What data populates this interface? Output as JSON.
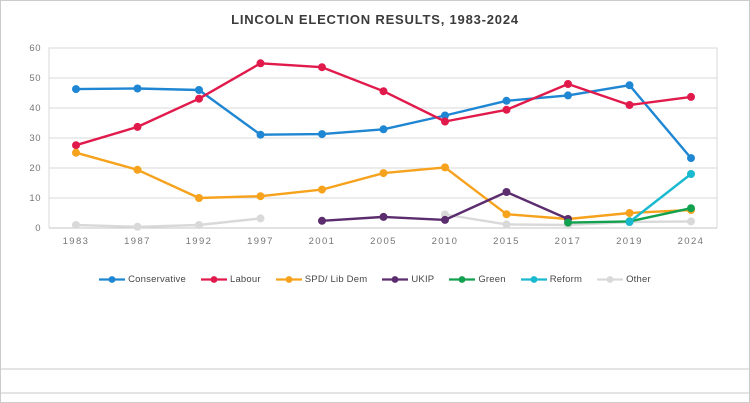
{
  "window": {
    "background": "#ffffff",
    "border_color": "#cccccc"
  },
  "chart_data": {
    "type": "line",
    "title": "LINCOLN ELECTION RESULTS, 1983-2024",
    "xlabel": "",
    "ylabel": "",
    "ylim": [
      0,
      60
    ],
    "ytick_interval": 10,
    "ytick_labels": [
      "0",
      "10",
      "20",
      "30",
      "40",
      "50",
      "60"
    ],
    "grid": true,
    "legend_position": "bottom",
    "categories": [
      "1983",
      "1987",
      "1992",
      "1997",
      "2001",
      "2005",
      "2010",
      "2015",
      "2017",
      "2019",
      "2024"
    ],
    "series": [
      {
        "name": "Conservative",
        "color": "#1e86d2",
        "values": [
          46.3,
          46.5,
          46.0,
          31.1,
          31.3,
          32.9,
          37.5,
          42.4,
          44.2,
          47.6,
          23.3
        ]
      },
      {
        "name": "Labour",
        "color": "#e11a4c",
        "values": [
          27.6,
          33.7,
          43.1,
          54.9,
          53.6,
          45.6,
          35.5,
          39.4,
          48.0,
          41.0,
          43.7
        ]
      },
      {
        "name": "SPD/ Lib Dem",
        "color": "#f6a21c",
        "values": [
          25.1,
          19.4,
          10.0,
          10.6,
          12.8,
          18.3,
          20.2,
          4.6,
          3.0,
          5.0,
          6.0
        ]
      },
      {
        "name": "UKIP",
        "color": "#5b2d6e",
        "values": [
          null,
          null,
          null,
          null,
          2.4,
          3.7,
          2.7,
          12.0,
          3.0,
          null,
          null
        ]
      },
      {
        "name": "Green",
        "color": "#12a14e",
        "values": [
          null,
          null,
          null,
          null,
          null,
          null,
          null,
          null,
          1.8,
          2.2,
          6.6
        ]
      },
      {
        "name": "Reform",
        "color": "#19b9cf",
        "values": [
          null,
          null,
          null,
          null,
          null,
          null,
          null,
          null,
          null,
          2.0,
          18.0
        ]
      },
      {
        "name": "Other",
        "color": "#d9d9d9",
        "values": [
          1.0,
          0.4,
          1.0,
          3.2,
          null,
          null,
          4.5,
          1.2,
          1.0,
          2.0,
          2.2
        ]
      }
    ],
    "colors": {
      "gridline": "#d9d9d9",
      "axis_line": "#c6c6c6",
      "plot_border": "#d9d9d9",
      "tick_label": "#767676",
      "legend_label": "#474747",
      "title": "#3b3b3b"
    }
  }
}
